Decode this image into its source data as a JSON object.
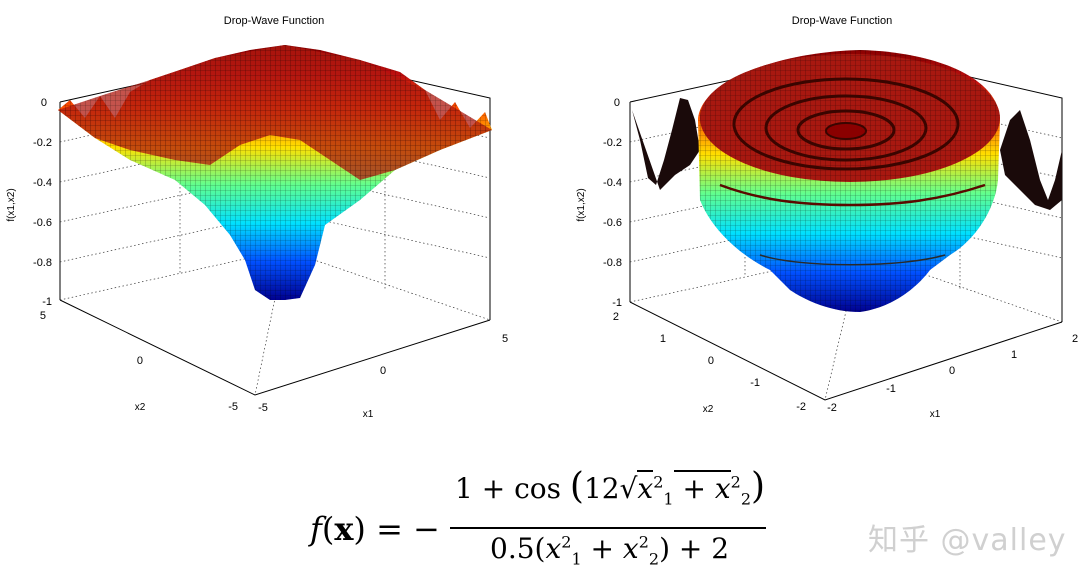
{
  "chart_data": [
    {
      "type": "surface",
      "title": "Drop-Wave Function",
      "xlabel": "x1",
      "ylabel": "x2",
      "zlabel": "f(x1,x2)",
      "xlim": [
        -5,
        5
      ],
      "ylim": [
        -5,
        5
      ],
      "zlim": [
        -1,
        0
      ],
      "xticks": [
        "-5",
        "0",
        "5"
      ],
      "yticks": [
        "5",
        "0",
        "-5"
      ],
      "zticks": [
        "0",
        "-0.2",
        "-0.4",
        "-0.6",
        "-0.8",
        "-1"
      ],
      "grid": true,
      "colormap": "jet"
    },
    {
      "type": "surface",
      "title": "Drop-Wave Function",
      "xlabel": "x1",
      "ylabel": "x2",
      "zlabel": "f(x1,x2)",
      "xlim": [
        -2,
        2
      ],
      "ylim": [
        -2,
        2
      ],
      "zlim": [
        -1,
        0
      ],
      "xticks": [
        "-2",
        "-1",
        "0",
        "1",
        "2"
      ],
      "yticks": [
        "2",
        "1",
        "0",
        "-1",
        "-2"
      ],
      "zticks": [
        "0",
        "-0.2",
        "-0.4",
        "-0.6",
        "-0.8",
        "-1"
      ],
      "grid": true,
      "colormap": "jet"
    }
  ],
  "formula": {
    "lhs_fn": "f",
    "lhs_open": "(",
    "lhs_var": "x",
    "lhs_close": ")",
    "equals": " = −",
    "numerator_start": "1 + cos",
    "numerator_arg": "12√",
    "numerator_x1": "x",
    "x1_sub": "1",
    "x1_sup": "2",
    "plus": " + ",
    "numerator_x2": "x",
    "x2_sub": "2",
    "x2_sup": "2",
    "paren_open": "(",
    "paren_close": ")",
    "denominator_start": "0.5(",
    "denominator_end": ") + 2"
  },
  "watermark": "知乎 @valley"
}
